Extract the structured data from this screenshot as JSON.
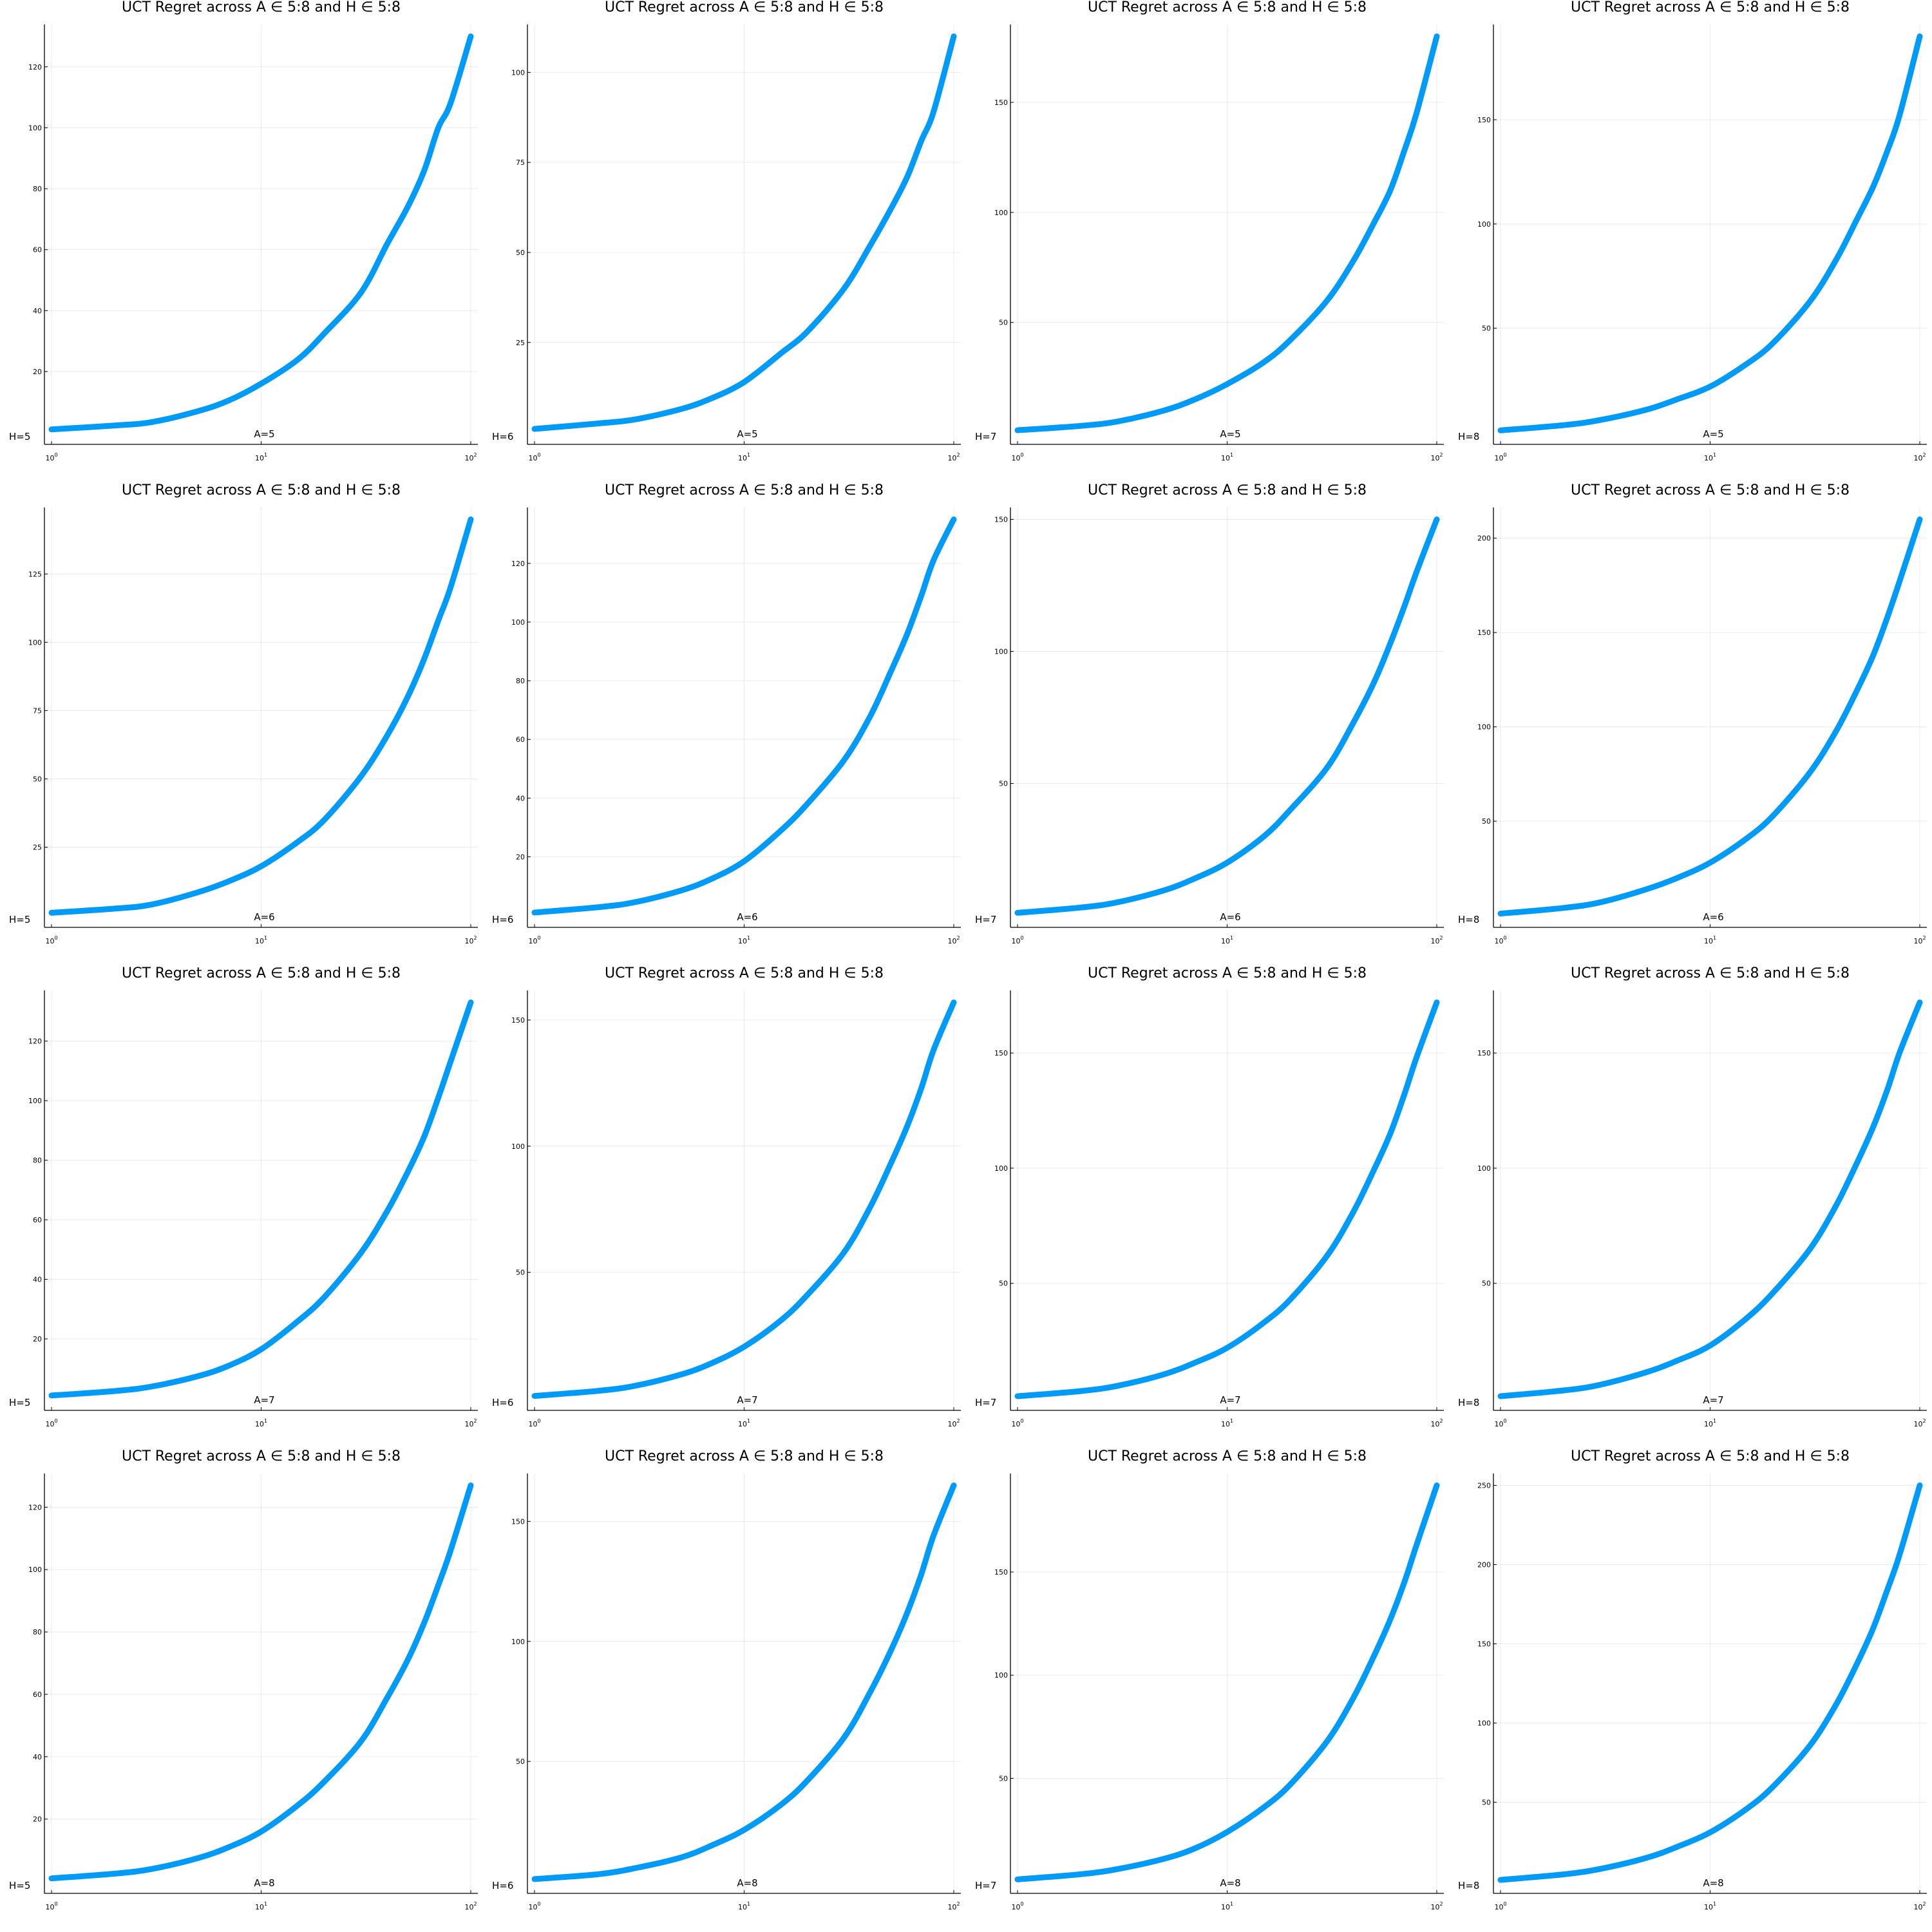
{
  "palette": {
    "series": "#009AF9",
    "axis": "#000000"
  },
  "chart_data": [
    {
      "type": "line",
      "title": "UCT Regret across A ∈ 5:8 and H ∈ 5:8",
      "xscale": "log10",
      "xlim": [
        1,
        100
      ],
      "ylim": [
        0,
        130
      ],
      "xticks": [
        1,
        10,
        100
      ],
      "xtick_exponents": [
        "0",
        "1",
        "2"
      ],
      "yticks": [
        20,
        40,
        60,
        80,
        100,
        120
      ],
      "annotations": [
        "A=5",
        "H=5"
      ],
      "x": [
        1,
        2,
        3,
        5,
        7,
        10,
        15,
        20,
        30,
        40,
        50,
        60,
        70,
        80,
        100
      ],
      "y": [
        1,
        2.3,
        3.4,
        7,
        10.5,
        16,
        24,
        32.5,
        46,
        62,
        74,
        86,
        100,
        108,
        130
      ]
    },
    {
      "type": "line",
      "title": "UCT Regret across A ∈ 5:8 and H ∈ 5:8",
      "xscale": "log10",
      "xlim": [
        1,
        100
      ],
      "ylim": [
        0,
        110
      ],
      "xticks": [
        1,
        10,
        100
      ],
      "xtick_exponents": [
        "0",
        "1",
        "2"
      ],
      "yticks": [
        25,
        50,
        75,
        100
      ],
      "annotations": [
        "A=5",
        "H=6"
      ],
      "x": [
        1,
        2,
        3,
        5,
        7,
        10,
        15,
        20,
        30,
        40,
        50,
        60,
        70,
        80,
        100
      ],
      "y": [
        1,
        2.5,
        3.6,
        6.5,
        9.5,
        14,
        22,
        28,
        40,
        52,
        62,
        71,
        81,
        89,
        110
      ]
    },
    {
      "type": "line",
      "title": "UCT Regret across A ∈ 5:8 and H ∈ 5:8",
      "xscale": "log10",
      "xlim": [
        1,
        100
      ],
      "ylim": [
        0,
        180
      ],
      "xticks": [
        1,
        10,
        100
      ],
      "xtick_exponents": [
        "0",
        "1",
        "2"
      ],
      "yticks": [
        50,
        100,
        150
      ],
      "annotations": [
        "A=5",
        "H=7"
      ],
      "x": [
        1,
        2,
        3,
        5,
        7,
        10,
        15,
        20,
        30,
        40,
        50,
        60,
        70,
        80,
        100
      ],
      "y": [
        1,
        3,
        5,
        10,
        15,
        22,
        32,
        42,
        60,
        78,
        95,
        110,
        128,
        145,
        180
      ]
    },
    {
      "type": "line",
      "title": "UCT Regret across A ∈ 5:8 and H ∈ 5:8",
      "xscale": "log10",
      "xlim": [
        1,
        100
      ],
      "ylim": [
        0,
        190
      ],
      "xticks": [
        1,
        10,
        100
      ],
      "xtick_exponents": [
        "0",
        "1",
        "2"
      ],
      "yticks": [
        50,
        100,
        150
      ],
      "annotations": [
        "A=5",
        "H=8"
      ],
      "x": [
        1,
        2,
        3,
        5,
        7,
        10,
        15,
        20,
        30,
        40,
        50,
        60,
        70,
        80,
        100
      ],
      "y": [
        1,
        3.5,
        6,
        11,
        16,
        22,
        33,
        43,
        63,
        83,
        102,
        118,
        135,
        152,
        190
      ]
    },
    {
      "type": "line",
      "title": "UCT Regret across A ∈ 5:8 and H ∈ 5:8",
      "xscale": "log10",
      "xlim": [
        1,
        100
      ],
      "ylim": [
        0,
        145
      ],
      "xticks": [
        1,
        10,
        100
      ],
      "xtick_exponents": [
        "0",
        "1",
        "2"
      ],
      "yticks": [
        25,
        50,
        75,
        100,
        125
      ],
      "annotations": [
        "A=6",
        "H=5"
      ],
      "x": [
        1,
        2,
        3,
        5,
        7,
        10,
        15,
        20,
        30,
        40,
        50,
        60,
        70,
        80,
        100
      ],
      "y": [
        1,
        2.5,
        4,
        8.5,
        12.5,
        18,
        27,
        35,
        51,
        66,
        80,
        94,
        108,
        120,
        145
      ]
    },
    {
      "type": "line",
      "title": "UCT Regret across A ∈ 5:8 and H ∈ 5:8",
      "xscale": "log10",
      "xlim": [
        1,
        100
      ],
      "ylim": [
        0,
        135
      ],
      "xticks": [
        1,
        10,
        100
      ],
      "xtick_exponents": [
        "0",
        "1",
        "2"
      ],
      "yticks": [
        20,
        40,
        60,
        80,
        100,
        120
      ],
      "annotations": [
        "A=6",
        "H=6"
      ],
      "x": [
        1,
        2,
        3,
        5,
        7,
        10,
        15,
        20,
        30,
        40,
        50,
        60,
        70,
        80,
        100
      ],
      "y": [
        1,
        2.8,
        4.5,
        8.5,
        12.5,
        18.5,
        29,
        38,
        53,
        68,
        83,
        96,
        109,
        121,
        135
      ]
    },
    {
      "type": "line",
      "title": "UCT Regret across A ∈ 5:8 and H ∈ 5:8",
      "xscale": "log10",
      "xlim": [
        1,
        100
      ],
      "ylim": [
        0,
        150
      ],
      "xticks": [
        1,
        10,
        100
      ],
      "xtick_exponents": [
        "0",
        "1",
        "2"
      ],
      "yticks": [
        50,
        100,
        150
      ],
      "annotations": [
        "A=6",
        "H=7"
      ],
      "x": [
        1,
        2,
        3,
        5,
        7,
        10,
        15,
        20,
        30,
        40,
        50,
        60,
        70,
        80,
        100
      ],
      "y": [
        1,
        3,
        5,
        9.5,
        14,
        20,
        30,
        40,
        56,
        73,
        88,
        103,
        117,
        130,
        150
      ]
    },
    {
      "type": "line",
      "title": "UCT Regret across A ∈ 5:8 and H ∈ 5:8",
      "xscale": "log10",
      "xlim": [
        1,
        100
      ],
      "ylim": [
        0,
        210
      ],
      "xticks": [
        1,
        10,
        100
      ],
      "xtick_exponents": [
        "0",
        "1",
        "2"
      ],
      "yticks": [
        50,
        100,
        150,
        200
      ],
      "annotations": [
        "A=6",
        "H=8"
      ],
      "x": [
        1,
        2,
        3,
        5,
        7,
        10,
        15,
        20,
        30,
        40,
        50,
        60,
        70,
        80,
        100
      ],
      "y": [
        1,
        4,
        7,
        14,
        20,
        28,
        41,
        53,
        76,
        98,
        119,
        138,
        158,
        177,
        210
      ]
    },
    {
      "type": "line",
      "title": "UCT Regret across A ∈ 5:8 and H ∈ 5:8",
      "xscale": "log10",
      "xlim": [
        1,
        100
      ],
      "ylim": [
        0,
        133
      ],
      "xticks": [
        1,
        10,
        100
      ],
      "xtick_exponents": [
        "0",
        "1",
        "2"
      ],
      "yticks": [
        20,
        40,
        60,
        80,
        100,
        120
      ],
      "annotations": [
        "A=7",
        "H=5"
      ],
      "x": [
        1,
        2,
        3,
        5,
        7,
        10,
        15,
        20,
        30,
        40,
        50,
        60,
        70,
        80,
        100
      ],
      "y": [
        1,
        2.5,
        4,
        7.5,
        11,
        16.5,
        26,
        34,
        49,
        63,
        76,
        88,
        101,
        113,
        133
      ]
    },
    {
      "type": "line",
      "title": "UCT Regret across A ∈ 5:8 and H ∈ 5:8",
      "xscale": "log10",
      "xlim": [
        1,
        100
      ],
      "ylim": [
        0,
        157
      ],
      "xticks": [
        1,
        10,
        100
      ],
      "xtick_exponents": [
        "0",
        "1",
        "2"
      ],
      "yticks": [
        50,
        100,
        150
      ],
      "annotations": [
        "A=7",
        "H=6"
      ],
      "x": [
        1,
        2,
        3,
        5,
        7,
        10,
        15,
        20,
        30,
        40,
        50,
        60,
        70,
        80,
        100
      ],
      "y": [
        1,
        3,
        5,
        9.5,
        14,
        20.5,
        31,
        41,
        58,
        76,
        93,
        108,
        123,
        138,
        157
      ]
    },
    {
      "type": "line",
      "title": "UCT Regret across A ∈ 5:8 and H ∈ 5:8",
      "xscale": "log10",
      "xlim": [
        1,
        100
      ],
      "ylim": [
        0,
        172
      ],
      "xticks": [
        1,
        10,
        100
      ],
      "xtick_exponents": [
        "0",
        "1",
        "2"
      ],
      "yticks": [
        50,
        100,
        150
      ],
      "annotations": [
        "A=7",
        "H=7"
      ],
      "x": [
        1,
        2,
        3,
        5,
        7,
        10,
        15,
        20,
        30,
        40,
        50,
        60,
        70,
        80,
        100
      ],
      "y": [
        1,
        3.2,
        5.5,
        10.5,
        15.5,
        22,
        33,
        43,
        62,
        81,
        99,
        115,
        132,
        148,
        172
      ]
    },
    {
      "type": "line",
      "title": "UCT Regret across A ∈ 5:8 and H ∈ 5:8",
      "xscale": "log10",
      "xlim": [
        1,
        100
      ],
      "ylim": [
        0,
        172
      ],
      "xticks": [
        1,
        10,
        100
      ],
      "xtick_exponents": [
        "0",
        "1",
        "2"
      ],
      "yticks": [
        50,
        100,
        150
      ],
      "annotations": [
        "A=7",
        "H=8"
      ],
      "x": [
        1,
        2,
        3,
        5,
        7,
        10,
        15,
        20,
        30,
        40,
        50,
        60,
        70,
        80,
        100
      ],
      "y": [
        1,
        3.5,
        6,
        11.5,
        16.5,
        23,
        35,
        46,
        65,
        84,
        102,
        118,
        134,
        150,
        172
      ]
    },
    {
      "type": "line",
      "title": "UCT Regret across A ∈ 5:8 and H ∈ 5:8",
      "xscale": "log10",
      "xlim": [
        1,
        100
      ],
      "ylim": [
        0,
        127
      ],
      "xticks": [
        1,
        10,
        100
      ],
      "xtick_exponents": [
        "0",
        "1",
        "2"
      ],
      "yticks": [
        20,
        40,
        60,
        80,
        100,
        120
      ],
      "annotations": [
        "A=8",
        "H=5"
      ],
      "x": [
        1,
        2,
        3,
        5,
        7,
        10,
        15,
        20,
        30,
        40,
        50,
        60,
        70,
        80,
        100
      ],
      "y": [
        1,
        2.5,
        4,
        7.5,
        11,
        16,
        24.5,
        32,
        45,
        59,
        71,
        83,
        95,
        106,
        127
      ]
    },
    {
      "type": "line",
      "title": "UCT Regret across A ∈ 5:8 and H ∈ 5:8",
      "xscale": "log10",
      "xlim": [
        1,
        100
      ],
      "ylim": [
        0,
        165
      ],
      "xticks": [
        1,
        10,
        100
      ],
      "xtick_exponents": [
        "0",
        "1",
        "2"
      ],
      "yticks": [
        50,
        100,
        150
      ],
      "annotations": [
        "A=8",
        "H=6"
      ],
      "x": [
        1,
        2,
        3,
        5,
        7,
        10,
        15,
        20,
        30,
        40,
        50,
        60,
        70,
        80,
        100
      ],
      "y": [
        1,
        3,
        5.5,
        10,
        15,
        21.5,
        32,
        42,
        60,
        79,
        96,
        112,
        128,
        144,
        165
      ]
    },
    {
      "type": "line",
      "title": "UCT Regret across A ∈ 5:8 and H ∈ 5:8",
      "xscale": "log10",
      "xlim": [
        1,
        100
      ],
      "ylim": [
        0,
        192
      ],
      "xticks": [
        1,
        10,
        100
      ],
      "xtick_exponents": [
        "0",
        "1",
        "2"
      ],
      "yticks": [
        50,
        100,
        150
      ],
      "annotations": [
        "A=8",
        "H=7"
      ],
      "x": [
        1,
        2,
        3,
        5,
        7,
        10,
        15,
        20,
        30,
        40,
        50,
        60,
        70,
        80,
        100
      ],
      "y": [
        1,
        3.5,
        6,
        11,
        16,
        24,
        36,
        47,
        68,
        89,
        109,
        127,
        145,
        163,
        192
      ]
    },
    {
      "type": "line",
      "title": "UCT Regret across A ∈ 5:8 and H ∈ 5:8",
      "xscale": "log10",
      "xlim": [
        1,
        100
      ],
      "ylim": [
        0,
        250
      ],
      "xticks": [
        1,
        10,
        100
      ],
      "xtick_exponents": [
        "0",
        "1",
        "2"
      ],
      "yticks": [
        50,
        100,
        150,
        200,
        250
      ],
      "annotations": [
        "A=8",
        "H=8"
      ],
      "x": [
        1,
        2,
        3,
        5,
        7,
        10,
        15,
        20,
        30,
        40,
        50,
        60,
        70,
        80,
        100
      ],
      "y": [
        1,
        4.5,
        8,
        15,
        22,
        31,
        46,
        60,
        86,
        112,
        137,
        160,
        184,
        206,
        250
      ]
    }
  ]
}
